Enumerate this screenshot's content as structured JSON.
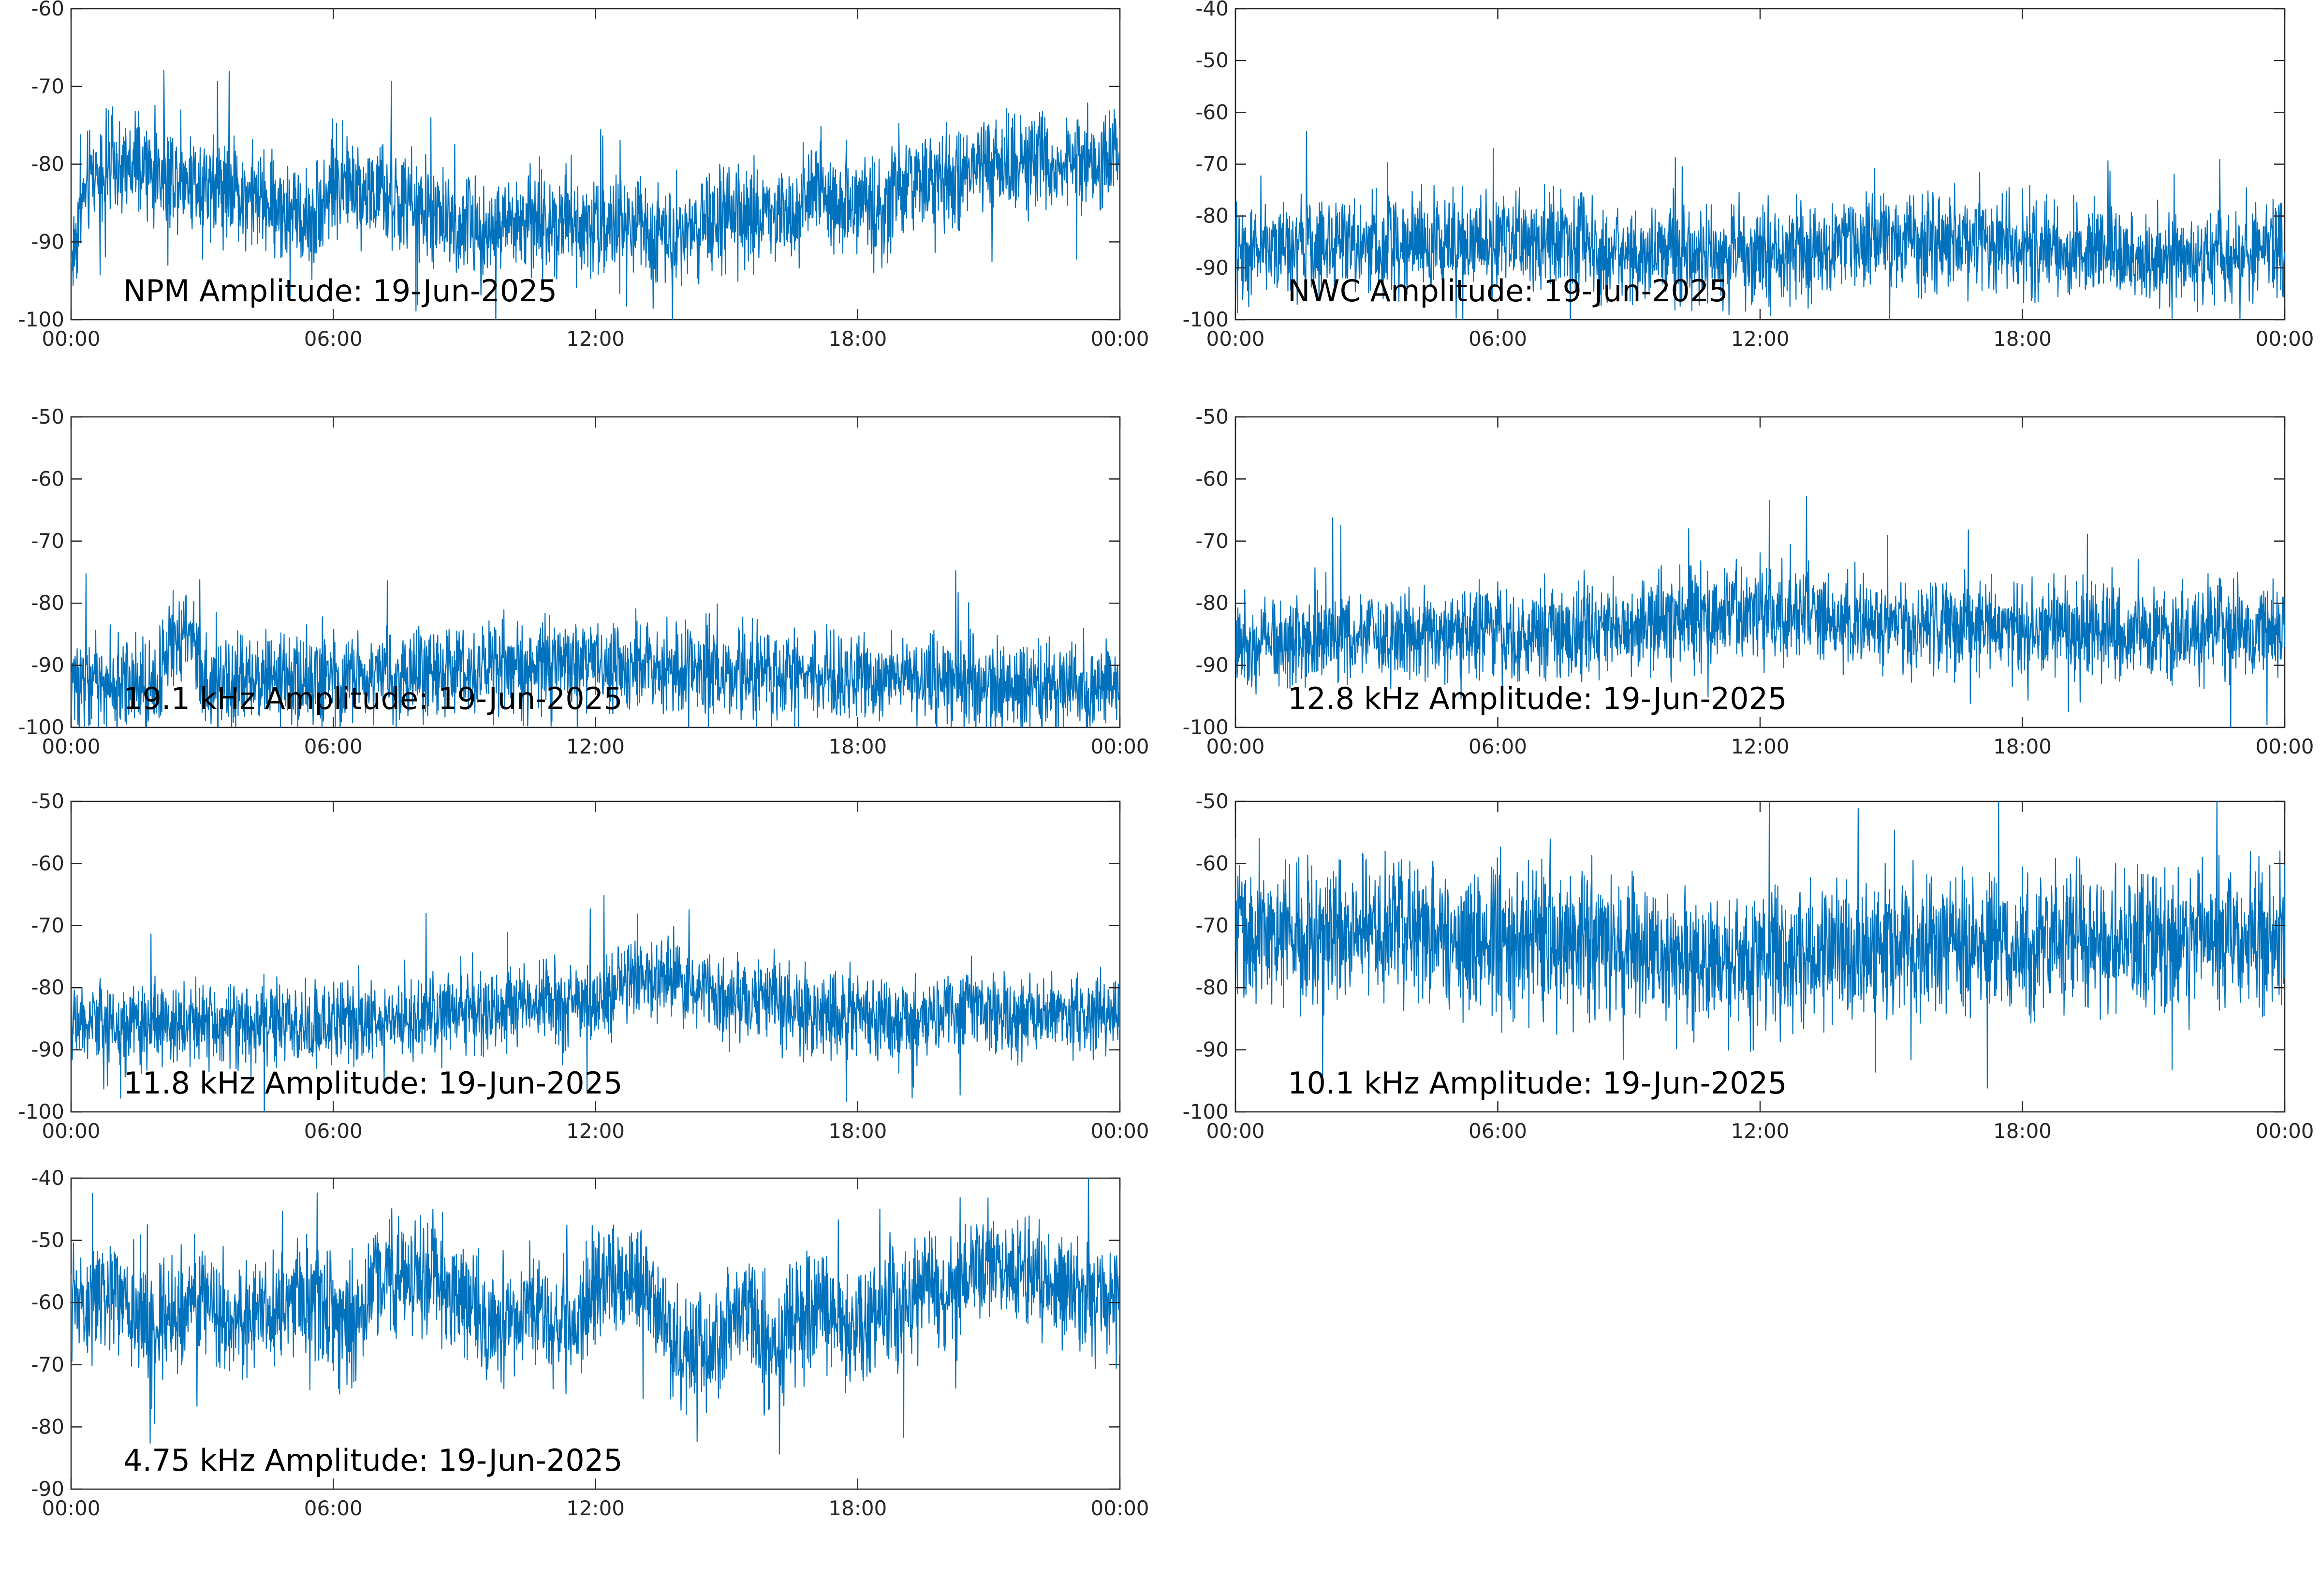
{
  "colors": {
    "series": "#0072bd",
    "axes": "#262626",
    "background": "#ffffff"
  },
  "chart_data": [
    {
      "type": "line",
      "title": "NPM Amplitude: 19-Jun-2025",
      "xlabel": "",
      "ylabel": "",
      "xlim": [
        "00:00",
        "24:00"
      ],
      "ylim": [
        -100,
        -60
      ],
      "xticks": [
        "00:00",
        "06:00",
        "12:00",
        "18:00",
        "00:00"
      ],
      "yticks": [
        "-60",
        "-70",
        "-80",
        "-90",
        "-100"
      ],
      "grid": false,
      "x_hours": [
        0,
        0.25,
        0.5,
        1,
        1.5,
        2,
        2.5,
        3,
        3.5,
        4,
        4.5,
        5,
        5.5,
        6,
        6.5,
        7,
        7.5,
        8,
        8.5,
        9,
        9.5,
        10,
        10.5,
        11,
        11.5,
        12,
        12.5,
        13,
        13.5,
        14,
        14.5,
        15,
        15.5,
        16,
        16.5,
        17,
        17.5,
        18,
        18.5,
        19,
        19.5,
        20,
        20.5,
        21,
        21.5,
        22,
        22.5,
        23,
        23.5,
        24
      ],
      "y": [
        -93,
        -85,
        -81,
        -80.5,
        -81,
        -81,
        -81.5,
        -82,
        -82.5,
        -84,
        -85,
        -86,
        -87.5,
        -82,
        -83,
        -84,
        -85,
        -86,
        -87.5,
        -88,
        -88.5,
        -88,
        -87.5,
        -87,
        -87,
        -87.5,
        -88,
        -88.5,
        -88.5,
        -88.5,
        -88,
        -87.5,
        -87,
        -86,
        -86.5,
        -82.5,
        -85.5,
        -84,
        -86.5,
        -83,
        -82,
        -82.5,
        -81.5,
        -80.5,
        -79.5,
        -79.5,
        -80,
        -80,
        -80.5,
        -77.5
      ],
      "spread": 3.2
    },
    {
      "type": "line",
      "title": "NWC Amplitude: 19-Jun-2025",
      "xlabel": "",
      "ylabel": "",
      "xlim": [
        "00:00",
        "24:00"
      ],
      "ylim": [
        -100,
        -40
      ],
      "xticks": [
        "00:00",
        "06:00",
        "12:00",
        "18:00",
        "00:00"
      ],
      "yticks": [
        "-40",
        "-50",
        "-60",
        "-70",
        "-80",
        "-90",
        "-100"
      ],
      "grid": false,
      "x_hours": [
        0,
        1,
        2,
        3,
        4,
        5,
        6,
        7,
        7.5,
        8,
        8.5,
        9,
        10,
        11,
        12,
        13,
        13.5,
        14,
        15,
        16,
        17,
        18,
        19,
        20,
        21,
        22,
        23,
        24
      ],
      "y": [
        -87,
        -86,
        -85.5,
        -85,
        -85,
        -85,
        -85,
        -85,
        -84.5,
        -85,
        -88,
        -88,
        -88,
        -87.5,
        -87,
        -87,
        -86.5,
        -84.5,
        -84.5,
        -84.5,
        -85,
        -85.5,
        -86,
        -87,
        -88,
        -88,
        -87.5,
        -85
      ],
      "spread": 4.5
    },
    {
      "type": "line",
      "title": "19.1 kHz Amplitude: 19-Jun-2025",
      "xlabel": "",
      "ylabel": "",
      "xlim": [
        "00:00",
        "24:00"
      ],
      "ylim": [
        -100,
        -50
      ],
      "xticks": [
        "00:00",
        "06:00",
        "12:00",
        "18:00",
        "00:00"
      ],
      "yticks": [
        "-50",
        "-60",
        "-70",
        "-80",
        "-90",
        "-100"
      ],
      "grid": false,
      "x_hours": [
        0,
        1,
        2,
        2.3,
        2.5,
        2.8,
        3,
        4,
        5,
        6,
        7,
        8,
        9,
        10,
        11,
        12,
        13,
        14,
        15,
        16,
        17,
        18,
        19,
        20,
        20.5,
        21,
        22,
        23,
        24
      ],
      "y": [
        -93,
        -93,
        -93,
        -85,
        -84,
        -84,
        -93,
        -92.5,
        -92,
        -92,
        -92,
        -91.5,
        -91,
        -90.5,
        -90,
        -90,
        -90.5,
        -91,
        -91.5,
        -91.5,
        -92,
        -92,
        -92,
        -91,
        -93,
        -94,
        -93,
        -93,
        -93
      ],
      "spread": 3.5
    },
    {
      "type": "line",
      "title": "12.8 kHz Amplitude: 19-Jun-2025",
      "xlabel": "",
      "ylabel": "",
      "xlim": [
        "00:00",
        "24:00"
      ],
      "ylim": [
        -100,
        -50
      ],
      "xticks": [
        "00:00",
        "06:00",
        "12:00",
        "18:00",
        "00:00"
      ],
      "yticks": [
        "-50",
        "-60",
        "-70",
        "-80",
        "-90",
        "-100"
      ],
      "grid": false,
      "x_hours": [
        0,
        1,
        2,
        3,
        4,
        5,
        6,
        7,
        8,
        9,
        10,
        11,
        12,
        13,
        14,
        15,
        16,
        17,
        18,
        19,
        20,
        21,
        22,
        23,
        24
      ],
      "y": [
        -86,
        -86,
        -85.5,
        -85.5,
        -85.5,
        -85.5,
        -85,
        -85,
        -85,
        -84,
        -83,
        -82,
        -81.5,
        -82,
        -82.5,
        -83,
        -83.5,
        -84,
        -84,
        -84.5,
        -84.5,
        -84.5,
        -84.5,
        -84.5,
        -84.5
      ],
      "spread": 3.6
    },
    {
      "type": "line",
      "title": "11.8 kHz Amplitude: 19-Jun-2025",
      "xlabel": "",
      "ylabel": "",
      "xlim": [
        "00:00",
        "24:00"
      ],
      "ylim": [
        -100,
        -50
      ],
      "xticks": [
        "00:00",
        "06:00",
        "12:00",
        "18:00",
        "00:00"
      ],
      "yticks": [
        "-50",
        "-60",
        "-70",
        "-80",
        "-90",
        "-100"
      ],
      "grid": false,
      "x_hours": [
        0,
        1,
        2,
        3,
        4,
        5,
        6,
        7,
        8,
        9,
        10,
        11,
        12,
        12.5,
        13,
        13.5,
        14,
        14.5,
        15,
        15.5,
        16,
        16.5,
        17,
        18,
        19,
        20,
        20.5,
        21,
        22,
        23,
        24
      ],
      "y": [
        -85.5,
        -86,
        -86,
        -86,
        -86,
        -86,
        -85.5,
        -85.5,
        -85,
        -84,
        -83,
        -82.5,
        -82,
        -80,
        -78.5,
        -78,
        -79,
        -80,
        -81.5,
        -82.5,
        -80,
        -83,
        -85,
        -85,
        -85.5,
        -85,
        -83,
        -84,
        -84.5,
        -84.5,
        -85
      ],
      "spread": 3.2
    },
    {
      "type": "line",
      "title": "10.1 kHz Amplitude: 19-Jun-2025",
      "xlabel": "",
      "ylabel": "",
      "xlim": [
        "00:00",
        "24:00"
      ],
      "ylim": [
        -100,
        -50
      ],
      "xticks": [
        "00:00",
        "06:00",
        "12:00",
        "18:00",
        "00:00"
      ],
      "yticks": [
        "-50",
        "-60",
        "-70",
        "-80",
        "-90",
        "-100"
      ],
      "grid": false,
      "x_hours": [
        0,
        2,
        4,
        6,
        8,
        10,
        12,
        14,
        16,
        18,
        20,
        22,
        24
      ],
      "y": [
        -72,
        -71,
        -71,
        -72,
        -73,
        -75,
        -76,
        -74,
        -73,
        -73,
        -73,
        -72,
        -72
      ],
      "spread": 5.5
    },
    {
      "type": "line",
      "title": "4.75 kHz Amplitude: 19-Jun-2025",
      "xlabel": "",
      "ylabel": "",
      "xlim": [
        "00:00",
        "24:00"
      ],
      "ylim": [
        -90,
        -40
      ],
      "xticks": [
        "00:00",
        "06:00",
        "12:00",
        "18:00",
        "00:00"
      ],
      "yticks": [
        "-40",
        "-50",
        "-60",
        "-70",
        "-80",
        "-90"
      ],
      "grid": false,
      "x_hours": [
        0,
        0.5,
        1,
        1.5,
        2,
        2.5,
        3,
        3.5,
        4,
        4.5,
        5,
        5.5,
        6,
        6.5,
        7,
        7.5,
        8,
        8.5,
        9,
        9.5,
        10,
        10.5,
        11,
        11.5,
        12,
        12.5,
        13,
        13.5,
        14,
        14.5,
        15,
        15.5,
        16,
        16.5,
        17,
        17.5,
        18,
        18.5,
        19,
        19.5,
        20,
        20.5,
        21,
        21.5,
        22,
        22.5,
        23,
        23.5,
        24
      ],
      "y": [
        -60,
        -60,
        -58,
        -63,
        -63,
        -63,
        -58,
        -63,
        -63,
        -62,
        -60,
        -58,
        -63,
        -63,
        -56,
        -57,
        -56,
        -58,
        -60,
        -65,
        -62,
        -61,
        -62,
        -64,
        -57,
        -56,
        -57,
        -62,
        -69,
        -68,
        -64,
        -60,
        -69,
        -64,
        -61,
        -62,
        -65,
        -61,
        -61,
        -57,
        -59,
        -56,
        -55,
        -55,
        -56,
        -57,
        -58,
        -60,
        -58
      ],
      "spread": 4.5
    }
  ]
}
